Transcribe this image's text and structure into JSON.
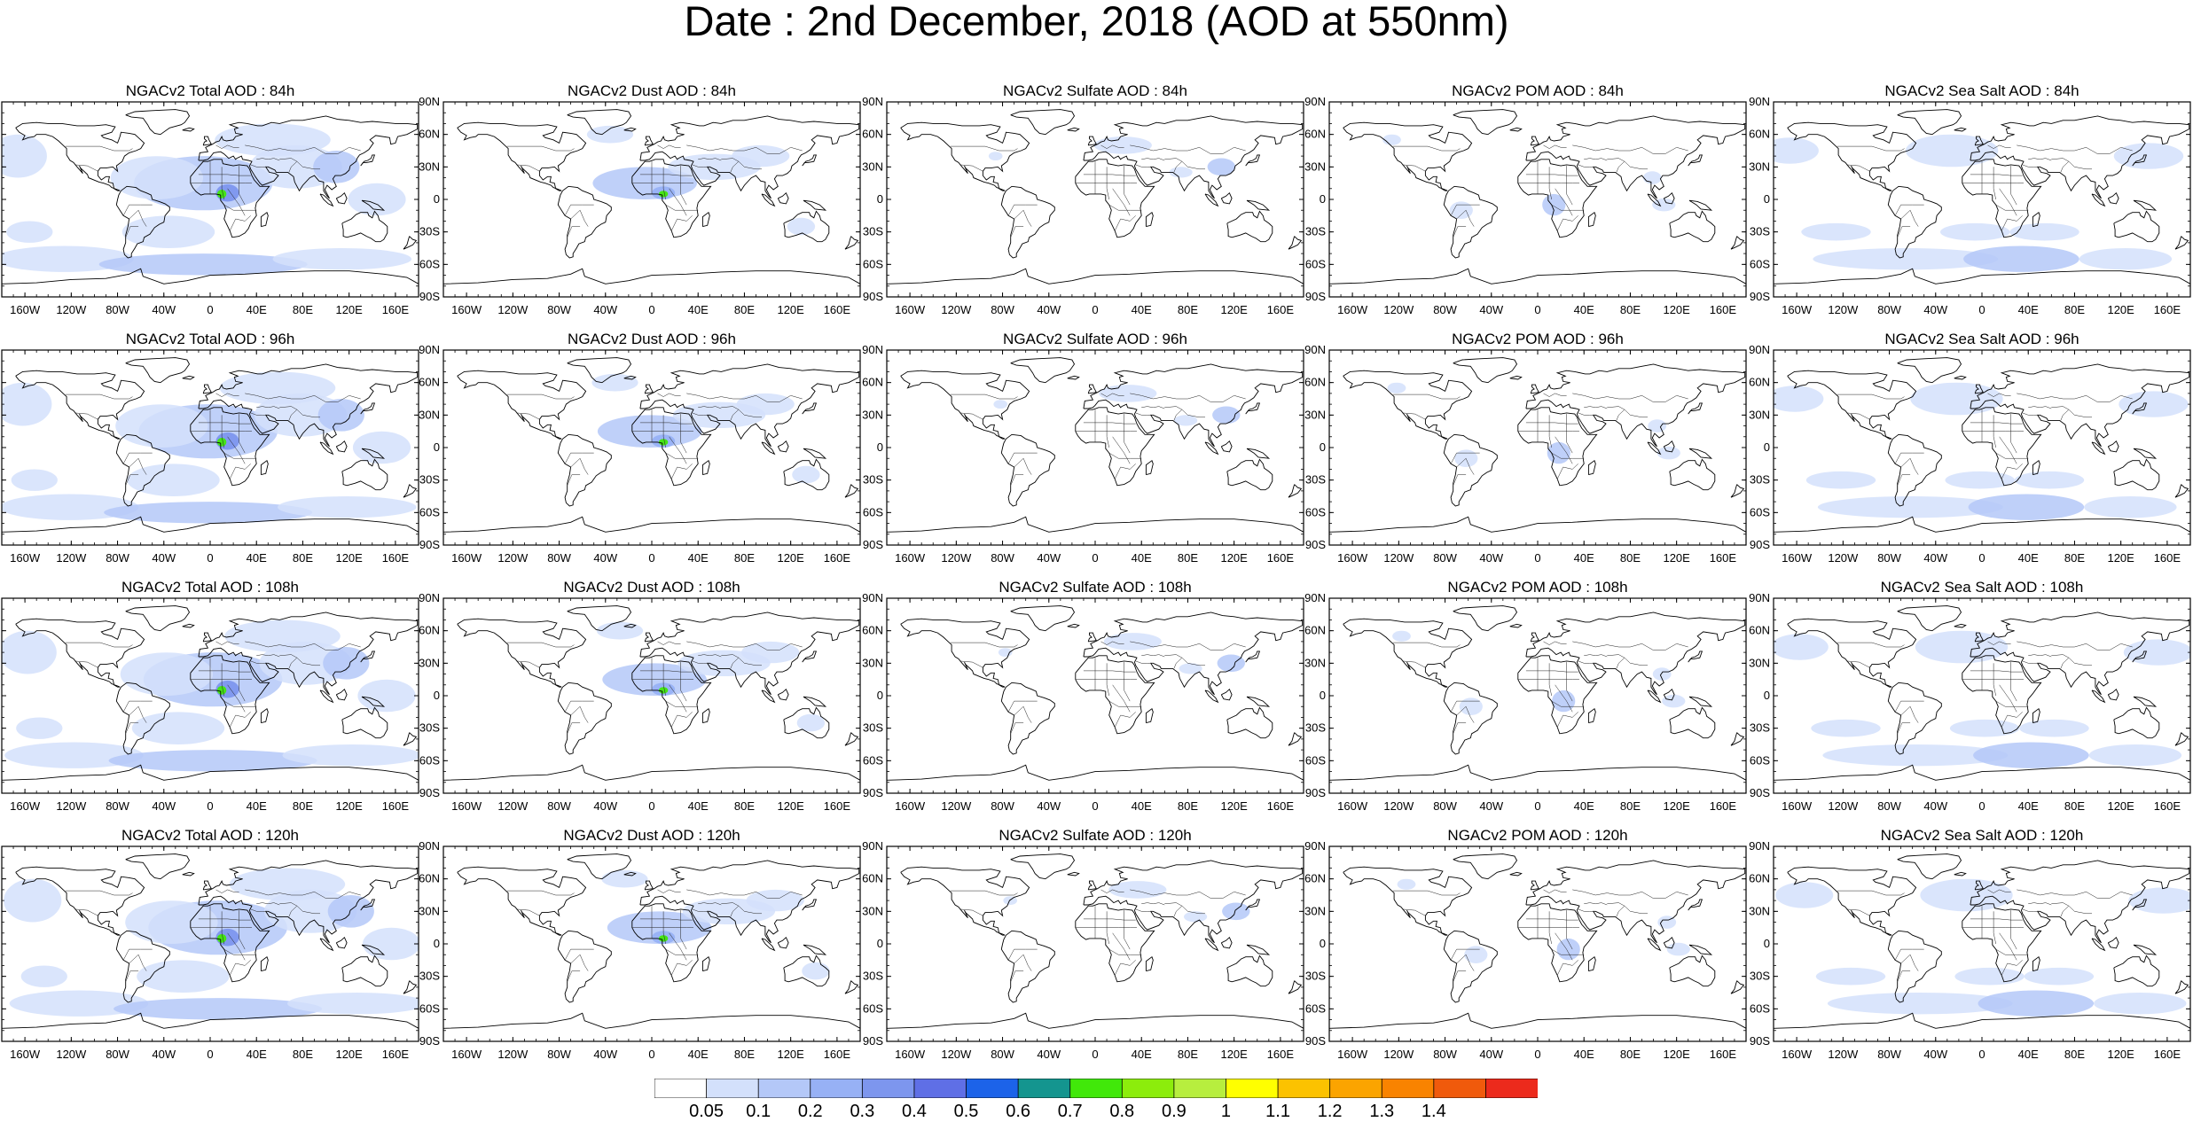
{
  "title": "Date : 2nd December, 2018 (AOD at 550nm)",
  "panels": [
    [
      "NGACv2 Total AOD : 84h",
      "NGACv2 Dust AOD : 84h",
      "NGACv2 Sulfate AOD : 84h",
      "NGACv2 POM AOD : 84h",
      "NGACv2 Sea Salt AOD : 84h"
    ],
    [
      "NGACv2 Total AOD : 96h",
      "NGACv2 Dust AOD : 96h",
      "NGACv2 Sulfate AOD : 96h",
      "NGACv2 POM AOD : 96h",
      "NGACv2 Sea Salt AOD : 96h"
    ],
    [
      "NGACv2 Total AOD : 108h",
      "NGACv2 Dust AOD : 108h",
      "NGACv2 Sulfate AOD : 108h",
      "NGACv2 POM AOD : 108h",
      "NGACv2 Sea Salt AOD : 108h"
    ],
    [
      "NGACv2 Total AOD : 120h",
      "NGACv2 Dust AOD : 120h",
      "NGACv2 Sulfate AOD : 120h",
      "NGACv2 POM AOD : 120h",
      "NGACv2 Sea Salt  AOD : 120h"
    ]
  ],
  "lat_ticks": [
    "90N",
    "60N",
    "30N",
    "0",
    "30S",
    "60S",
    "90S"
  ],
  "lon_ticks": [
    "160W",
    "120W",
    "80W",
    "40W",
    "0",
    "40E",
    "80E",
    "120E",
    "160E"
  ],
  "colorbar": {
    "levels": [
      "0.05",
      "0.1",
      "0.2",
      "0.3",
      "0.4",
      "0.5",
      "0.6",
      "0.7",
      "0.8",
      "0.9",
      "1",
      "1.1",
      "1.2",
      "1.3",
      "1.4"
    ],
    "colors": [
      "#ffffff",
      "#d3e0fb",
      "#b4c8f8",
      "#97b1f5",
      "#7d96ee",
      "#5f6fe6",
      "#1c63e9",
      "#14958f",
      "#41e80a",
      "#8ced0c",
      "#b7ee3e",
      "#ffff00",
      "#fcc200",
      "#fba400",
      "#f98300",
      "#f05a0c",
      "#ec2a1c"
    ]
  }
}
